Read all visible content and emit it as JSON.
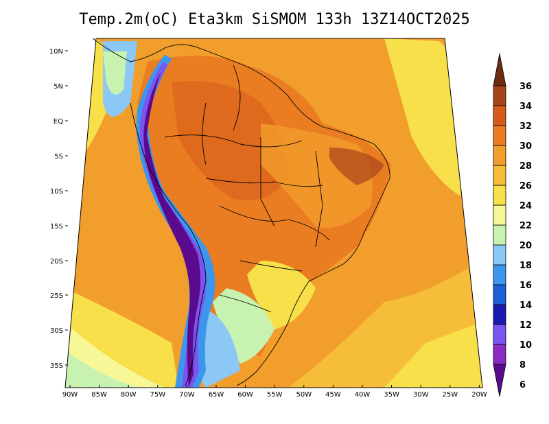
{
  "title": "Temp.2m(oC) Eta3km SiSMOM 133h 13Z14OCT2025",
  "map": {
    "variable": "2 m temperature",
    "unit": "oC",
    "region": "South America",
    "lat_ticks": [
      "10N",
      "5N",
      "EQ",
      "5S",
      "10S",
      "15S",
      "20S",
      "25S",
      "30S",
      "35S"
    ],
    "lon_ticks": [
      "90W",
      "85W",
      "80W",
      "75W",
      "70W",
      "65W",
      "60W",
      "55W",
      "50W",
      "45W",
      "40W",
      "35W",
      "30W",
      "25W",
      "20W"
    ]
  },
  "colorbar": {
    "labels": [
      "6",
      "8",
      "10",
      "12",
      "14",
      "16",
      "18",
      "20",
      "22",
      "24",
      "26",
      "28",
      "30",
      "32",
      "34",
      "36"
    ],
    "colors": [
      "#5a0a8c",
      "#8a2bc4",
      "#7b55f0",
      "#1a1ab0",
      "#1e5fd6",
      "#3c96ee",
      "#8cc8f5",
      "#c8f2b0",
      "#f7f797",
      "#f7e04a",
      "#f5bd3a",
      "#f29e2c",
      "#ea7d22",
      "#d65a1a",
      "#a8441a",
      "#6b2c10"
    ]
  }
}
